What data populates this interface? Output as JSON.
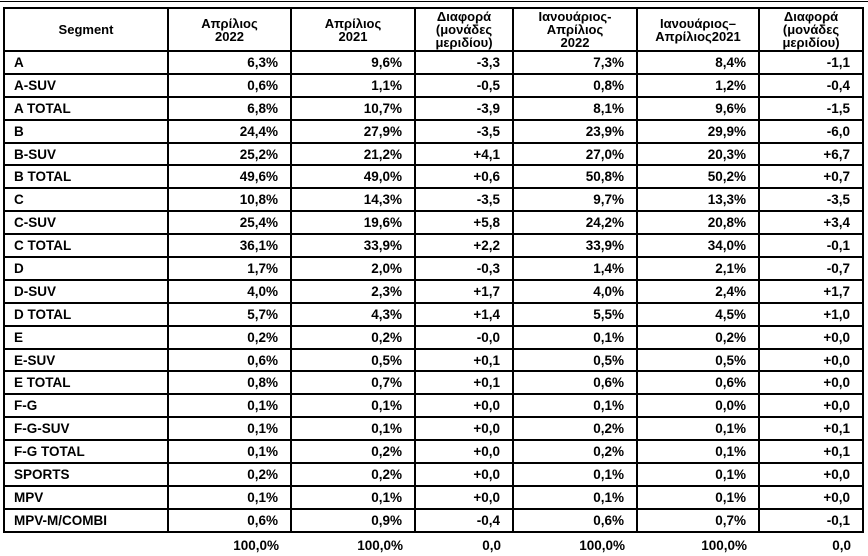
{
  "chart_data": {
    "type": "table",
    "title": "",
    "columns": [
      "Segment",
      "Απρίλιος\n2022",
      "Απρίλιος\n2021",
      "Διαφορά\n(μονάδες\nμεριδίου)",
      "Ιανουάριος-\nΑπρίλιος\n2022",
      "Ιανουάριος–\nΑπρίλιος2021",
      "Διαφορά\n(μονάδες\nμεριδίου)"
    ],
    "rows": [
      [
        "A",
        "6,3%",
        "9,6%",
        "-3,3",
        "7,3%",
        "8,4%",
        "-1,1"
      ],
      [
        "A-SUV",
        "0,6%",
        "1,1%",
        "-0,5",
        "0,8%",
        "1,2%",
        "-0,4"
      ],
      [
        "A TOTAL",
        "6,8%",
        "10,7%",
        "-3,9",
        "8,1%",
        "9,6%",
        "-1,5"
      ],
      [
        "B",
        "24,4%",
        "27,9%",
        "-3,5",
        "23,9%",
        "29,9%",
        "-6,0"
      ],
      [
        "B-SUV",
        "25,2%",
        "21,2%",
        "+4,1",
        "27,0%",
        "20,3%",
        "+6,7"
      ],
      [
        "B TOTAL",
        "49,6%",
        "49,0%",
        "+0,6",
        "50,8%",
        "50,2%",
        "+0,7"
      ],
      [
        "C",
        "10,8%",
        "14,3%",
        "-3,5",
        "9,7%",
        "13,3%",
        "-3,5"
      ],
      [
        "C-SUV",
        "25,4%",
        "19,6%",
        "+5,8",
        "24,2%",
        "20,8%",
        "+3,4"
      ],
      [
        "C TOTAL",
        "36,1%",
        "33,9%",
        "+2,2",
        "33,9%",
        "34,0%",
        "-0,1"
      ],
      [
        "D",
        "1,7%",
        "2,0%",
        "-0,3",
        "1,4%",
        "2,1%",
        "-0,7"
      ],
      [
        "D-SUV",
        "4,0%",
        "2,3%",
        "+1,7",
        "4,0%",
        "2,4%",
        "+1,7"
      ],
      [
        "D TOTAL",
        "5,7%",
        "4,3%",
        "+1,4",
        "5,5%",
        "4,5%",
        "+1,0"
      ],
      [
        "E",
        "0,2%",
        "0,2%",
        "-0,0",
        "0,1%",
        "0,2%",
        "+0,0"
      ],
      [
        "E-SUV",
        "0,6%",
        "0,5%",
        "+0,1",
        "0,5%",
        "0,5%",
        "+0,0"
      ],
      [
        "E TOTAL",
        "0,8%",
        "0,7%",
        "+0,1",
        "0,6%",
        "0,6%",
        "+0,0"
      ],
      [
        "F-G",
        "0,1%",
        "0,1%",
        "+0,0",
        "0,1%",
        "0,0%",
        "+0,0"
      ],
      [
        "F-G-SUV",
        "0,1%",
        "0,1%",
        "+0,0",
        "0,2%",
        "0,1%",
        "+0,1"
      ],
      [
        "F-G TOTAL",
        "0,1%",
        "0,2%",
        "+0,0",
        "0,2%",
        "0,1%",
        "+0,1"
      ],
      [
        "SPORTS",
        "0,2%",
        "0,2%",
        "+0,0",
        "0,1%",
        "0,1%",
        "+0,0"
      ],
      [
        "MPV",
        "0,1%",
        "0,1%",
        "+0,0",
        "0,1%",
        "0,1%",
        "+0,0"
      ],
      [
        "MPV-M/COMBI",
        "0,6%",
        "0,9%",
        "-0,4",
        "0,6%",
        "0,7%",
        "-0,1"
      ]
    ],
    "totals_row": [
      "",
      "100,0%",
      "100,0%",
      "0,0",
      "100,0%",
      "100,0%",
      "0,0"
    ],
    "layout": {
      "grid": "all-cell-borders",
      "totals_row_borders": "none",
      "number_alignment": "right",
      "segment_alignment": "left"
    },
    "colors": {
      "border": "#000000",
      "text": "#000000",
      "background": "#ffffff"
    }
  }
}
